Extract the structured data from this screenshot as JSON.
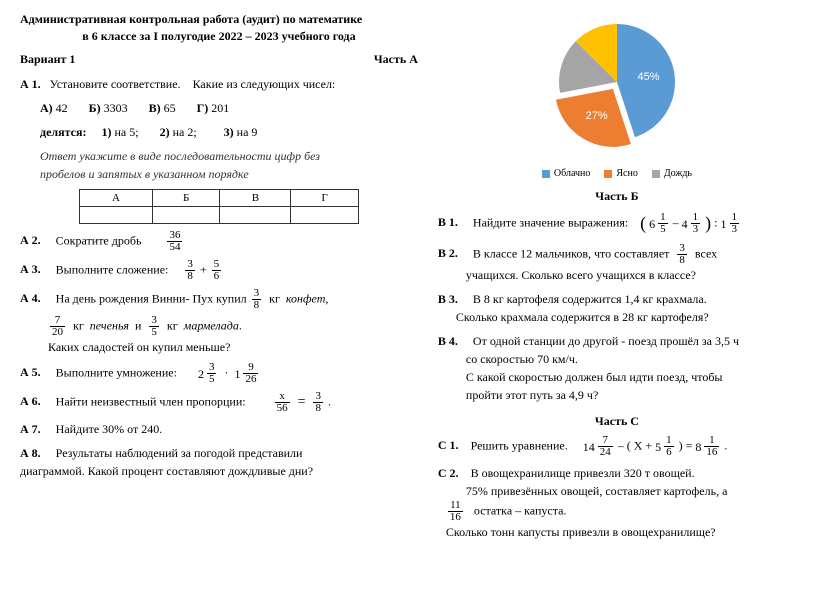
{
  "header": {
    "line1": "Административная контрольная работа (аудит) по математике",
    "line2": "в 6 классе  за I полугодие 2022 – 2023 учебного года",
    "variant": "Вариант 1",
    "partA": "Часть  А"
  },
  "a1": {
    "label": "А 1.",
    "lead": "Установите соответствие.",
    "q": "Какие из следующих чисел:",
    "A": "А)",
    "Av": "42",
    "B": "Б)",
    "Bv": "3303",
    "V": "В)",
    "Vv": "65",
    "G": "Г)",
    "Gv": "201",
    "div": "делятся:",
    "d1": "1)",
    "d1v": "на 5;",
    "d2": "2)",
    "d2v": "на 2;",
    "d3": "3)",
    "d3v": "на 9",
    "note1": "Ответ укажите в виде последовательности цифр без",
    "note2": "пробелов  и  запятых  в   указанном порядке"
  },
  "a1table": {
    "h1": "А",
    "h2": "Б",
    "h3": "В",
    "h4": "Г"
  },
  "a2": {
    "label": "А 2.",
    "text": "Сократите дробь",
    "num": "36",
    "den": "54"
  },
  "a3": {
    "label": "А 3.",
    "text": "Выполните сложение:",
    "n1": "3",
    "d1": "8",
    "plus": "+",
    "n2": "5",
    "d2": "6"
  },
  "a4": {
    "label": "А 4.",
    "l1a": "На день рождения Винни- Пух купил",
    "n1": "3",
    "d1": "8",
    "l1b": "кг",
    "l1c": "конфет",
    "n2": "7",
    "d2": "20",
    "l2a": "кг",
    "l2b": "печенья",
    "l2c": "и",
    "n3": "3",
    "d3": "5",
    "l2d": "кг",
    "l2e": "мармелада",
    "l3": "Каких сладостей он купил меньше?"
  },
  "a5": {
    "label": "А 5.",
    "text": "Выполните умножение:",
    "w1": "2",
    "n1": "3",
    "d1": "5",
    "dot": "·",
    "w2": "1",
    "n2": "9",
    "d2": "26"
  },
  "a6": {
    "label": "А 6.",
    "text": "Найти неизвестный член пропорции:",
    "n1": "x",
    "d1": "56",
    "eq": "=",
    "n2": "3",
    "d2": "8",
    "tail": "."
  },
  "a7": {
    "label": "А 7.",
    "text": "Найдите   30%      от         240."
  },
  "a8": {
    "label": "А 8.",
    "l1": "Результаты наблюдений за погодой представили",
    "l2": "диаграммой. Какой процент составляют дождливые дни?"
  },
  "chart": {
    "labels": {
      "slice1": "45%",
      "slice2": "27%"
    },
    "legend": {
      "c": "Облачно",
      "y": "Ясно",
      "r": "Дождь"
    },
    "colors": {
      "cloud": "#5b9bd5",
      "clear": "#ed7d31",
      "rain": "#a5a5a5",
      "slice4": "#ffc000"
    },
    "angles": {
      "cloud": 162,
      "clear": 97.2,
      "rest": 100.8
    }
  },
  "partB": {
    "title": "Часть  Б"
  },
  "b1": {
    "label": "В 1.",
    "text": "Найдите значение выражения:",
    "lp": "(",
    "w1": "6",
    "n1": "1",
    "d1": "5",
    "minus": "–",
    "w2": "4",
    "n2": "1",
    "d2": "3",
    "rp": ")",
    "colon": ":",
    "w3": "1",
    "n3": "1",
    "d3": "3"
  },
  "b2": {
    "label": "В 2.",
    "l1a": "В  классе   12 мальчиков,    что    составляет",
    "n": "3",
    "d": "8",
    "l1b": "всех",
    "l2": "учащихся.       Сколько   всего   учащихся   в  классе?"
  },
  "b3": {
    "label": "В 3.",
    "l1": "В 8 кг картофеля содержится 1,4 кг крахмала.",
    "l2": "Сколько  крахмала содержится в 28 кг картофеля?"
  },
  "b4": {
    "label": "В 4.",
    "l1": "От одной станции до другой - поезд  прошёл за 3,5 ч",
    "l2": "со   скоростью 70 км/ч.",
    "l3": "С какой скоростью должен был идти поезд, чтобы",
    "l4": "пройти  этот путь за 4,9 ч?"
  },
  "partC": {
    "title": "Часть  С"
  },
  "c1": {
    "label": "С 1.",
    "text": "Решить уравнение.",
    "w1": "14",
    "n1": "7",
    "d1": "24",
    "m1": "– (",
    "x": "X",
    "p": "+",
    "w2": "5",
    "n2": "1",
    "d2": "6",
    "m2": ") =",
    "w3": "8",
    "n3": "1",
    "d3": "16",
    "tail": "."
  },
  "c2": {
    "label": "С 2.",
    "l1": "В овощехранилище привезли 320 т овощей.",
    "l2": "75%   привезённых овощей, составляет картофель,  а",
    "n": "11",
    "d": "16",
    "l3": "остатка  –  капуста.",
    "l4": "Сколько тонн капусты привезли в овощехранилище?"
  }
}
